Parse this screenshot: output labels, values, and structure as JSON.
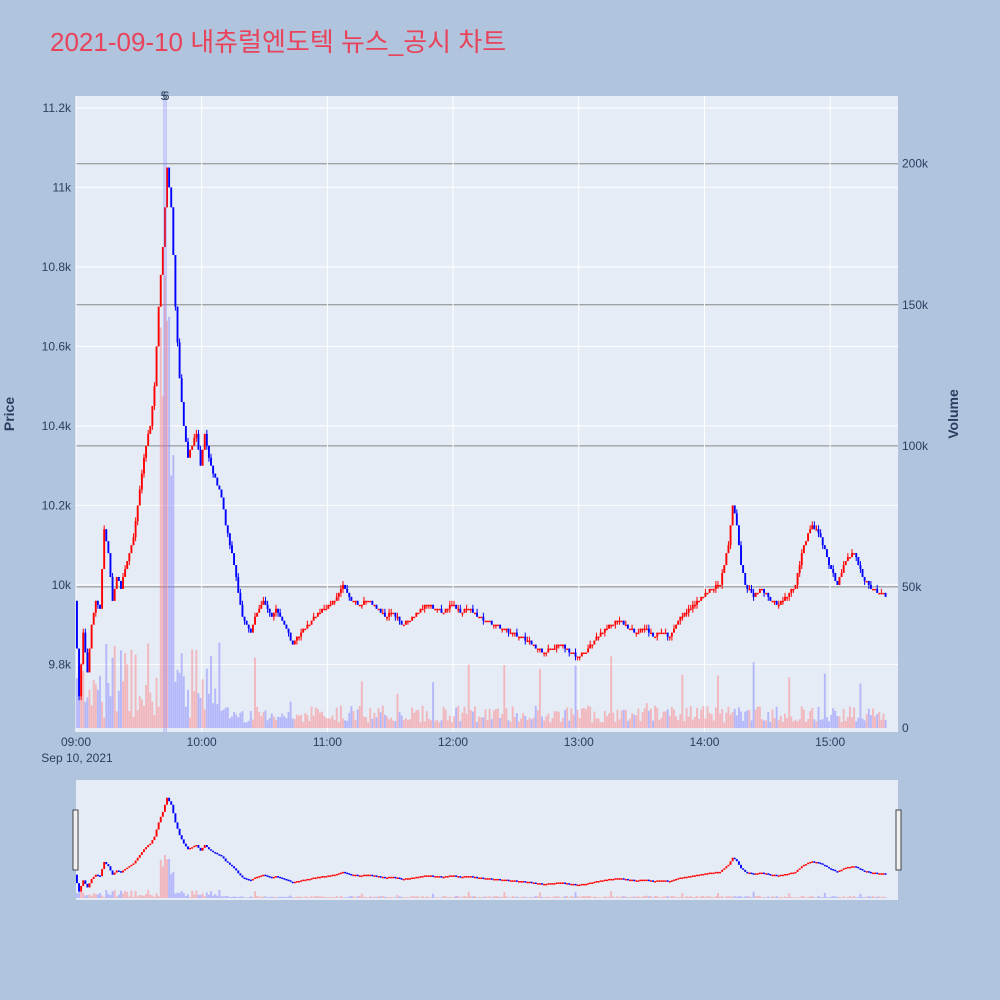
{
  "title": "2021-09-10 내츄럴엔도텍 뉴스_공시 차트",
  "colors": {
    "up": "#ff0000",
    "down": "#0000ff",
    "plot_bg": "#e5ecf6",
    "paper_bg": "#b0c4de",
    "title": "#e8435a"
  },
  "chart_data": {
    "type": "candlestick",
    "title": "2021-09-10 내츄럴엔도텍 뉴스_공시 차트",
    "ylabel": "Price",
    "y2label": "Volume",
    "ylim": [
      9630,
      11230
    ],
    "y2lim": [
      0,
      224000
    ],
    "x_ticks": [
      "09:00",
      "10:00",
      "11:00",
      "12:00",
      "13:00",
      "14:00",
      "15:00"
    ],
    "x_tick_sublabel": "Sep 10, 2021",
    "y_ticks": [
      "9.8k",
      "10k",
      "10.2k",
      "10.4k",
      "10.6k",
      "10.8k",
      "11k",
      "11.2k"
    ],
    "y2_ticks": [
      "0",
      "50k",
      "100k",
      "150k",
      "200k"
    ],
    "annotations": [
      "5",
      "6"
    ],
    "x_range_minutes": [
      0,
      390
    ],
    "price_path": [
      [
        0,
        9960
      ],
      [
        2,
        9720
      ],
      [
        4,
        9880
      ],
      [
        6,
        9780
      ],
      [
        8,
        9900
      ],
      [
        10,
        9960
      ],
      [
        12,
        9940
      ],
      [
        14,
        10140
      ],
      [
        16,
        10080
      ],
      [
        18,
        9960
      ],
      [
        20,
        10020
      ],
      [
        22,
        9990
      ],
      [
        24,
        10040
      ],
      [
        26,
        10080
      ],
      [
        28,
        10120
      ],
      [
        30,
        10200
      ],
      [
        32,
        10280
      ],
      [
        34,
        10350
      ],
      [
        36,
        10400
      ],
      [
        38,
        10500
      ],
      [
        40,
        10700
      ],
      [
        42,
        10850
      ],
      [
        44,
        11050
      ],
      [
        46,
        10950
      ],
      [
        48,
        10700
      ],
      [
        50,
        10520
      ],
      [
        52,
        10400
      ],
      [
        54,
        10320
      ],
      [
        56,
        10350
      ],
      [
        58,
        10380
      ],
      [
        60,
        10300
      ],
      [
        62,
        10380
      ],
      [
        64,
        10320
      ],
      [
        66,
        10280
      ],
      [
        68,
        10250
      ],
      [
        70,
        10220
      ],
      [
        72,
        10150
      ],
      [
        74,
        10100
      ],
      [
        76,
        10050
      ],
      [
        78,
        9980
      ],
      [
        80,
        9920
      ],
      [
        82,
        9900
      ],
      [
        84,
        9880
      ],
      [
        86,
        9920
      ],
      [
        88,
        9940
      ],
      [
        90,
        9960
      ],
      [
        92,
        9940
      ],
      [
        94,
        9920
      ],
      [
        96,
        9940
      ],
      [
        100,
        9900
      ],
      [
        104,
        9850
      ],
      [
        108,
        9880
      ],
      [
        112,
        9900
      ],
      [
        116,
        9930
      ],
      [
        120,
        9940
      ],
      [
        124,
        9960
      ],
      [
        128,
        10000
      ],
      [
        132,
        9960
      ],
      [
        136,
        9950
      ],
      [
        140,
        9960
      ],
      [
        144,
        9940
      ],
      [
        148,
        9920
      ],
      [
        152,
        9930
      ],
      [
        156,
        9900
      ],
      [
        160,
        9910
      ],
      [
        164,
        9930
      ],
      [
        168,
        9950
      ],
      [
        172,
        9940
      ],
      [
        176,
        9930
      ],
      [
        180,
        9950
      ],
      [
        184,
        9930
      ],
      [
        188,
        9940
      ],
      [
        192,
        9920
      ],
      [
        196,
        9910
      ],
      [
        200,
        9900
      ],
      [
        204,
        9890
      ],
      [
        208,
        9880
      ],
      [
        212,
        9870
      ],
      [
        216,
        9860
      ],
      [
        220,
        9840
      ],
      [
        224,
        9830
      ],
      [
        228,
        9840
      ],
      [
        232,
        9850
      ],
      [
        236,
        9830
      ],
      [
        240,
        9820
      ],
      [
        244,
        9830
      ],
      [
        248,
        9860
      ],
      [
        252,
        9880
      ],
      [
        256,
        9900
      ],
      [
        260,
        9910
      ],
      [
        264,
        9890
      ],
      [
        268,
        9880
      ],
      [
        272,
        9890
      ],
      [
        276,
        9870
      ],
      [
        280,
        9880
      ],
      [
        284,
        9870
      ],
      [
        288,
        9910
      ],
      [
        292,
        9930
      ],
      [
        296,
        9950
      ],
      [
        300,
        9970
      ],
      [
        304,
        9990
      ],
      [
        308,
        10000
      ],
      [
        312,
        10100
      ],
      [
        314,
        10200
      ],
      [
        316,
        10150
      ],
      [
        318,
        10050
      ],
      [
        320,
        10000
      ],
      [
        324,
        9970
      ],
      [
        328,
        9990
      ],
      [
        332,
        9960
      ],
      [
        336,
        9950
      ],
      [
        340,
        9970
      ],
      [
        344,
        10000
      ],
      [
        348,
        10100
      ],
      [
        352,
        10150
      ],
      [
        356,
        10120
      ],
      [
        360,
        10050
      ],
      [
        364,
        10000
      ],
      [
        368,
        10060
      ],
      [
        372,
        10080
      ],
      [
        376,
        10020
      ],
      [
        380,
        9990
      ],
      [
        384,
        9980
      ],
      [
        388,
        9970
      ]
    ]
  }
}
